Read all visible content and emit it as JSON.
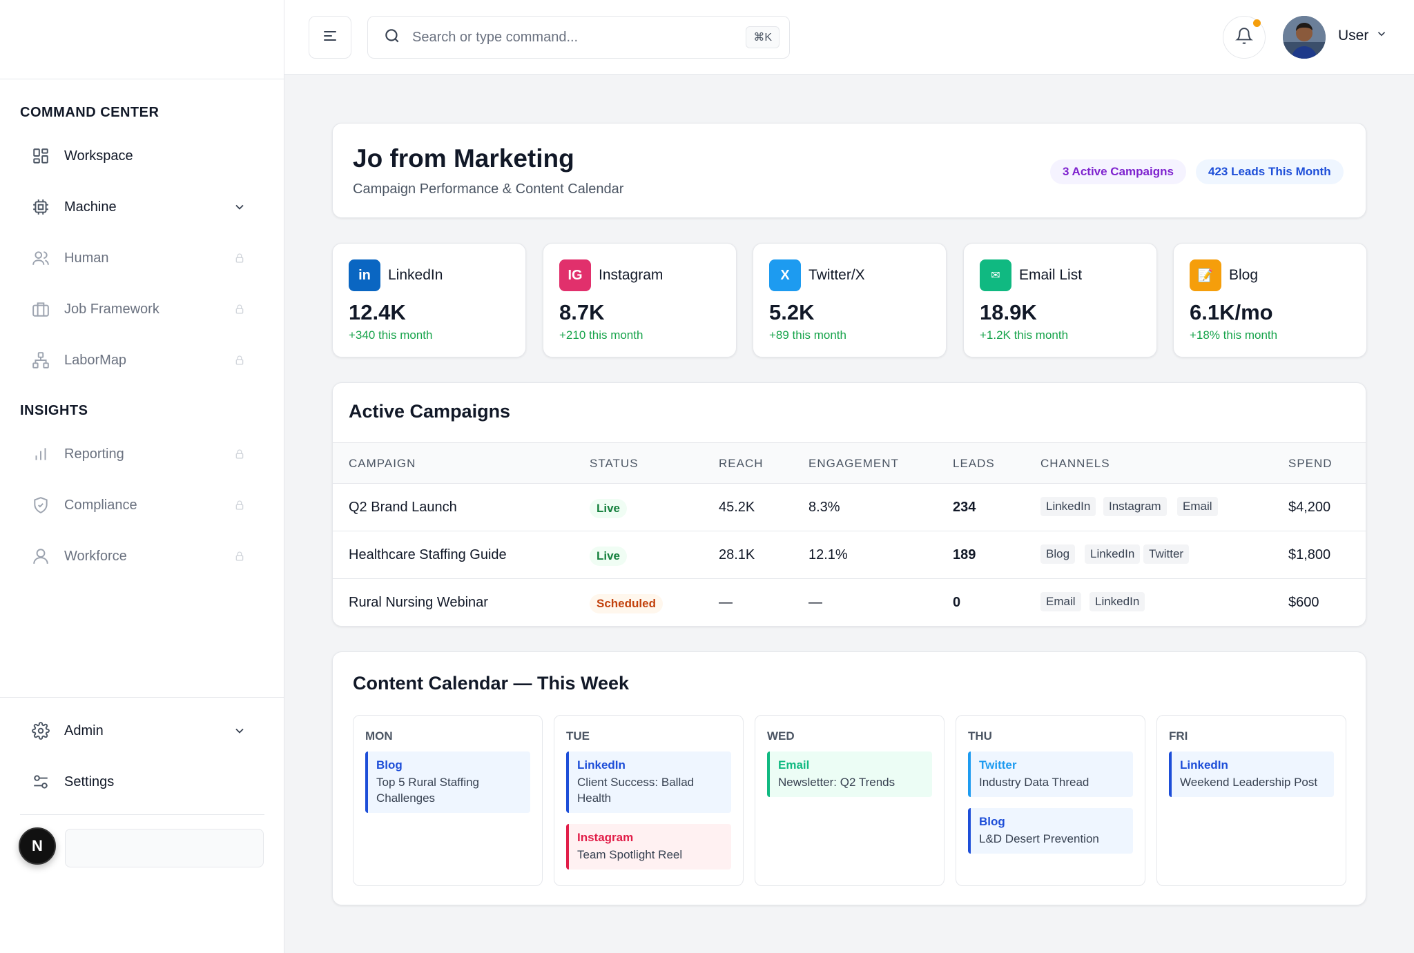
{
  "sidebar": {
    "section_command": "COMMAND CENTER",
    "section_insights": "INSIGHTS",
    "items": [
      {
        "label": "Workspace"
      },
      {
        "label": "Machine"
      },
      {
        "label": "Human"
      },
      {
        "label": "Job Framework"
      },
      {
        "label": "LaborMap"
      },
      {
        "label": "Reporting"
      },
      {
        "label": "Compliance"
      },
      {
        "label": "Workforce"
      }
    ],
    "admin_label": "Admin",
    "settings_label": "Settings",
    "badge_letter": "N"
  },
  "topbar": {
    "search_placeholder": "Search or type command...",
    "shortcut": "⌘K",
    "user_label": "User"
  },
  "hero": {
    "title": "Jo from Marketing",
    "subtitle": "Campaign Performance & Content Calendar",
    "pill_campaigns": "3 Active Campaigns",
    "pill_leads": "423 Leads This Month"
  },
  "stats": [
    {
      "icon": "in",
      "name": "LinkedIn",
      "value": "12.4K",
      "delta": "+340 this month",
      "color": "#0a66c2"
    },
    {
      "icon": "IG",
      "name": "Instagram",
      "value": "8.7K",
      "delta": "+210 this month",
      "color": "#e1306c"
    },
    {
      "icon": "X",
      "name": "Twitter/X",
      "value": "5.2K",
      "delta": "+89 this month",
      "color": "#1d9bf0"
    },
    {
      "icon": "✉",
      "name": "Email List",
      "value": "18.9K",
      "delta": "+1.2K this month",
      "color": "#10b981"
    },
    {
      "icon": "📝",
      "name": "Blog",
      "value": "6.1K/mo",
      "delta": "+18% this month",
      "color": "#f59e0b"
    }
  ],
  "campaigns": {
    "title": "Active Campaigns",
    "headers": [
      "CAMPAIGN",
      "STATUS",
      "REACH",
      "ENGAGEMENT",
      "LEADS",
      "CHANNELS",
      "SPEND"
    ],
    "rows": [
      {
        "name": "Q2 Brand Launch",
        "status": "Live",
        "reach": "45.2K",
        "engagement": "8.3%",
        "leads": "234",
        "channels": [
          "LinkedIn",
          "Instagram",
          "Email"
        ],
        "spend": "$4,200"
      },
      {
        "name": "Healthcare Staffing Guide",
        "status": "Live",
        "reach": "28.1K",
        "engagement": "12.1%",
        "leads": "189",
        "channels": [
          "Blog",
          "LinkedIn",
          "Twitter"
        ],
        "spend": "$1,800"
      },
      {
        "name": "Rural Nursing Webinar",
        "status": "Scheduled",
        "reach": "—",
        "engagement": "—",
        "leads": "0",
        "channels": [
          "Email",
          "LinkedIn"
        ],
        "spend": "$600"
      }
    ]
  },
  "calendar": {
    "title": "Content Calendar — This Week",
    "days": [
      {
        "name": "MON",
        "events": [
          {
            "channel": "Blog",
            "title": "Top 5 Rural Staffing Challenges"
          }
        ]
      },
      {
        "name": "TUE",
        "events": [
          {
            "channel": "LinkedIn",
            "title": "Client Success: Ballad Health"
          },
          {
            "channel": "Instagram",
            "title": "Team Spotlight Reel"
          }
        ]
      },
      {
        "name": "WED",
        "events": [
          {
            "channel": "Email",
            "title": "Newsletter: Q2 Trends"
          }
        ]
      },
      {
        "name": "THU",
        "events": [
          {
            "channel": "Twitter",
            "title": "Industry Data Thread"
          },
          {
            "channel": "Blog",
            "title": "L&D Desert Prevention"
          }
        ]
      },
      {
        "name": "FRI",
        "events": [
          {
            "channel": "LinkedIn",
            "title": "Weekend Leadership Post"
          }
        ]
      }
    ]
  }
}
